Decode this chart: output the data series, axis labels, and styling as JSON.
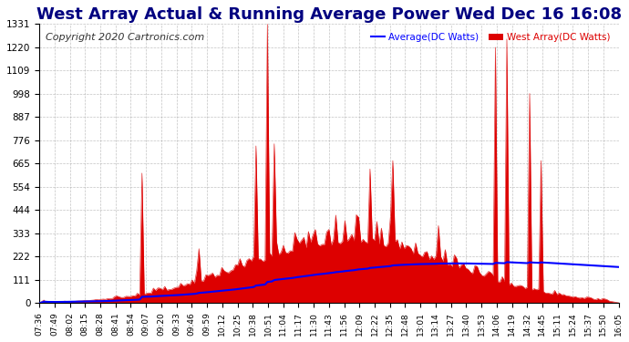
{
  "title": "West Array Actual & Running Average Power Wed Dec 16 16:08",
  "copyright": "Copyright 2020 Cartronics.com",
  "legend_avg": "Average(DC Watts)",
  "legend_west": "West Array(DC Watts)",
  "ymin": 0.0,
  "ymax": 1330.8,
  "yticks": [
    0.0,
    110.9,
    221.8,
    332.7,
    443.6,
    554.5,
    665.4,
    776.3,
    887.2,
    998.1,
    1109.0,
    1219.9,
    1330.8
  ],
  "xtick_labels": [
    "07:36",
    "07:49",
    "08:02",
    "08:15",
    "08:28",
    "08:41",
    "08:54",
    "09:07",
    "09:20",
    "09:33",
    "09:46",
    "09:59",
    "10:12",
    "10:25",
    "10:38",
    "10:51",
    "11:04",
    "11:17",
    "11:30",
    "11:43",
    "11:56",
    "12:09",
    "12:22",
    "12:35",
    "12:48",
    "13:01",
    "13:14",
    "13:27",
    "13:40",
    "13:53",
    "14:06",
    "14:19",
    "14:32",
    "14:45",
    "15:11",
    "15:24",
    "15:37",
    "15:50",
    "16:05"
  ],
  "background_color": "#ffffff",
  "plot_bg_color": "#ffffff",
  "grid_color": "#aaaaaa",
  "red_color": "#dd0000",
  "avg_color": "#0000ff",
  "title_color": "#000080",
  "title_fontsize": 13,
  "copyright_color": "#333333",
  "copyright_fontsize": 8,
  "spike_positions": [
    45,
    70,
    95,
    100,
    103,
    115,
    125,
    130,
    145,
    148,
    155,
    175,
    200,
    205,
    215,
    220
  ],
  "spike_heights": [
    620,
    260,
    750,
    1330,
    760,
    300,
    280,
    420,
    640,
    390,
    680,
    370,
    1220,
    1260,
    1000,
    680
  ],
  "n_points": 255,
  "peak_t": 0.535,
  "base_amplitude": 280,
  "base_sigma": 0.18,
  "noise_scale": 40,
  "random_seed": 42
}
